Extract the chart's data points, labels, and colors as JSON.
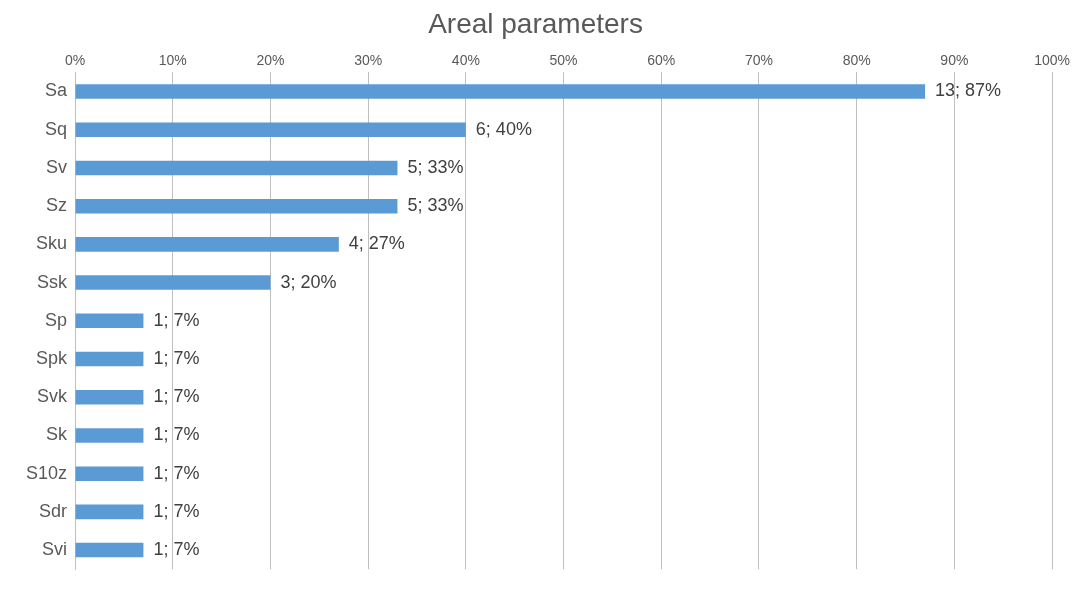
{
  "chart_data": {
    "type": "bar",
    "orientation": "horizontal",
    "title": "Areal parameters",
    "categories": [
      "Sa",
      "Sq",
      "Sv",
      "Sz",
      "Sku",
      "Ssk",
      "Sp",
      "Spk",
      "Svk",
      "Sk",
      "S10z",
      "Sdr",
      "Svi"
    ],
    "values": [
      87,
      40,
      33,
      33,
      27,
      20,
      7,
      7,
      7,
      7,
      7,
      7,
      7
    ],
    "value_labels": [
      "13; 87%",
      "6; 40%",
      "5; 33%",
      "5; 33%",
      "4; 27%",
      "3; 20%",
      "1; 7%",
      "1; 7%",
      "1; 7%",
      "1; 7%",
      "1; 7%",
      "1; 7%",
      "1; 7%"
    ],
    "color": "#5b9bd5",
    "xlim": [
      0,
      100
    ],
    "xticks": [
      {
        "value": 0,
        "label": "0%"
      },
      {
        "value": 10,
        "label": "10%"
      },
      {
        "value": 20,
        "label": "20%"
      },
      {
        "value": 30,
        "label": "30%"
      },
      {
        "value": 40,
        "label": "40%"
      },
      {
        "value": 50,
        "label": "50%"
      },
      {
        "value": 60,
        "label": "60%"
      },
      {
        "value": 70,
        "label": "70%"
      },
      {
        "value": 80,
        "label": "80%"
      },
      {
        "value": 90,
        "label": "90%"
      },
      {
        "value": 100,
        "label": "100%"
      }
    ],
    "grid": "x",
    "legend": false
  }
}
